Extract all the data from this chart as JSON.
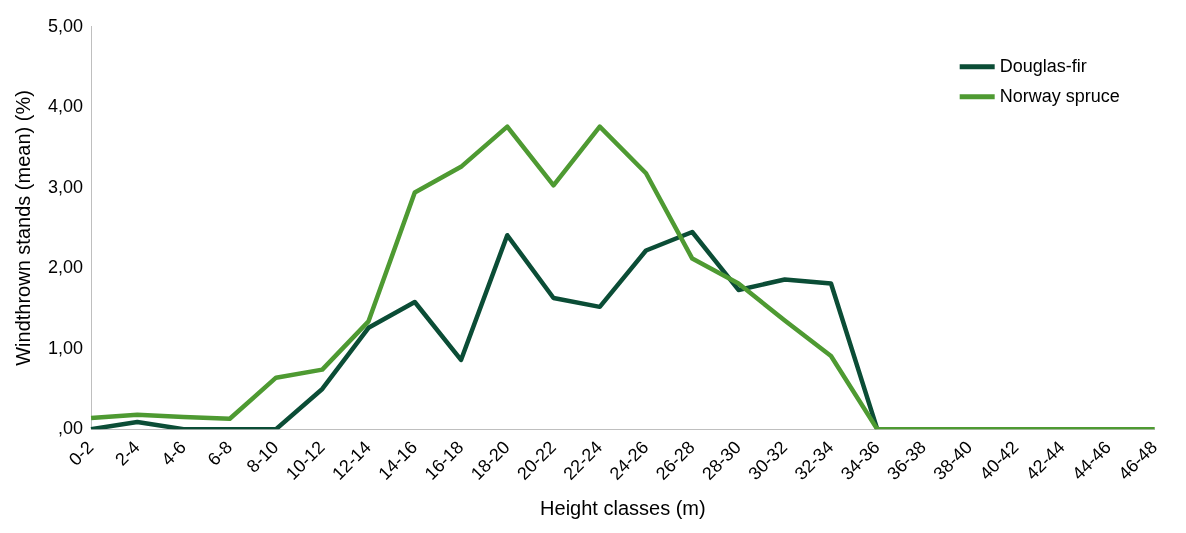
{
  "chart_data": {
    "type": "line",
    "xlabel": "Height classes (m)",
    "ylabel": "Windthrown stands (mean) (%)",
    "categories": [
      "0-2",
      "2-4",
      "4-6",
      "6-8",
      "8-10",
      "10-12",
      "12-14",
      "14-16",
      "16-18",
      "18-20",
      "20-22",
      "22-24",
      "24-26",
      "26-28",
      "28-30",
      "30-32",
      "32-34",
      "34-36",
      "36-38",
      "38-40",
      "40-42",
      "42-44",
      "44-46",
      "46-48"
    ],
    "series": [
      {
        "name": "Douglas-fir",
        "color": "#0b4d36",
        "values": [
          0,
          0.09,
          0,
          0,
          0,
          0.5,
          1.26,
          1.58,
          0.86,
          2.41,
          1.63,
          1.52,
          2.22,
          2.45,
          1.73,
          1.86,
          1.81,
          0,
          null,
          null,
          null,
          null,
          null,
          null
        ]
      },
      {
        "name": "Norway spruce",
        "color": "#4e9a32",
        "values": [
          0.14,
          0.18,
          0.15,
          0.13,
          0.64,
          0.74,
          1.34,
          2.94,
          3.26,
          3.76,
          3.03,
          3.76,
          3.18,
          2.12,
          1.81,
          1.35,
          0.91,
          0,
          0,
          0,
          0,
          0,
          0,
          0
        ]
      }
    ],
    "ylim": [
      0,
      5
    ],
    "yticks": [
      {
        "value": 0,
        "label": ",00"
      },
      {
        "value": 1,
        "label": "1,00"
      },
      {
        "value": 2,
        "label": "2,00"
      },
      {
        "value": 3,
        "label": "3,00"
      },
      {
        "value": 4,
        "label": "4,00"
      },
      {
        "value": 5,
        "label": "5,00"
      }
    ],
    "grid": false,
    "legend": "top right",
    "marker": "none",
    "line_style": "solid"
  }
}
